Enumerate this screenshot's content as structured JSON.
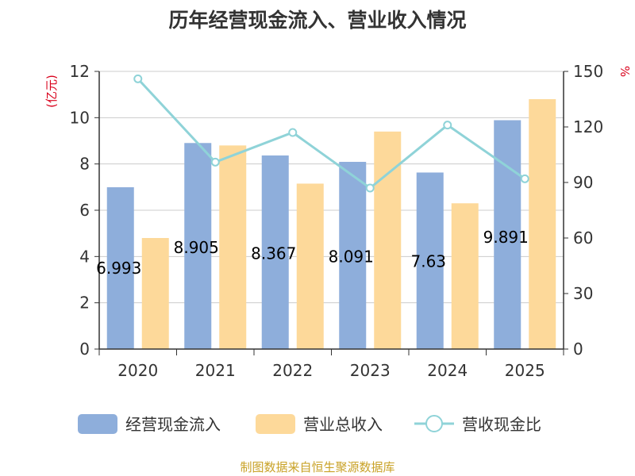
{
  "chart_data": {
    "type": "bar",
    "title": "历年经营现金流入、营业收入情况",
    "categories": [
      "2020",
      "2021",
      "2022",
      "2023",
      "2024",
      "2025"
    ],
    "series": [
      {
        "name": "经营现金流入",
        "kind": "bar",
        "axis": "left",
        "color": "#8eaedb",
        "values": [
          6.993,
          8.905,
          8.367,
          8.091,
          7.63,
          9.891
        ],
        "labels": [
          "6.993",
          "8.905",
          "8.367",
          "8.091",
          "7.63",
          "9.891"
        ]
      },
      {
        "name": "营业总收入",
        "kind": "bar",
        "axis": "left",
        "color": "#fdd99a",
        "values": [
          4.8,
          8.8,
          7.15,
          9.4,
          6.3,
          10.8
        ]
      },
      {
        "name": "营收现金比",
        "kind": "line",
        "axis": "right",
        "color": "#8fd3d8",
        "values": [
          146,
          101,
          117,
          87,
          121,
          92
        ]
      }
    ],
    "y_left": {
      "unit": "(亿元)",
      "min": 0,
      "max": 12,
      "ticks": [
        "0",
        "2",
        "4",
        "6",
        "8",
        "10",
        "12"
      ]
    },
    "y_right": {
      "unit": "%",
      "min": 0,
      "max": 150,
      "ticks": [
        "0",
        "30",
        "60",
        "90",
        "120",
        "150"
      ]
    },
    "grid": true,
    "legend_position": "bottom"
  },
  "source": "制图数据来自恒生聚源数据库"
}
